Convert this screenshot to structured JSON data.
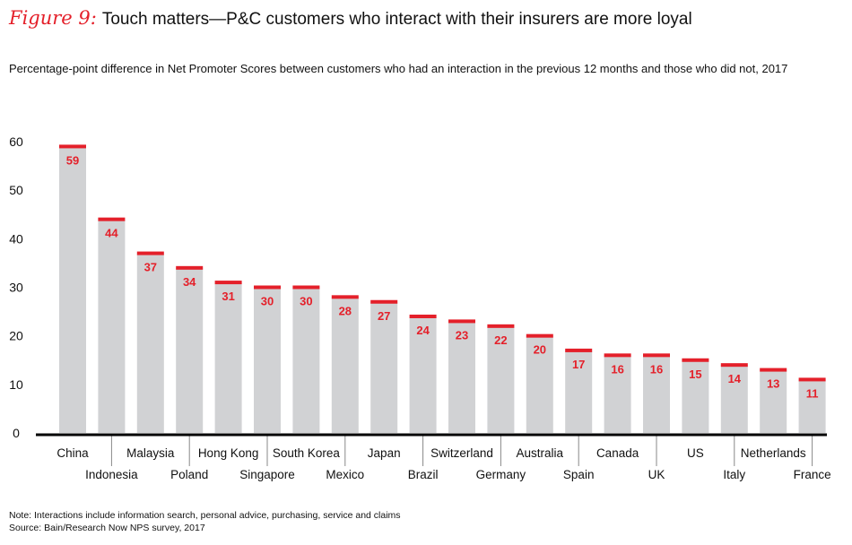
{
  "header": {
    "figure_label": "Figure 9:",
    "title": "Touch matters—P&C customers who interact with their insurers are more loyal",
    "subtitle": "Percentage-point difference in Net Promoter Scores between customers who had an interaction in the previous 12 months and those who did not, 2017"
  },
  "footer": {
    "note": "Note: Interactions include information search, personal advice, purchasing, service and claims",
    "source": "Source: Bain/Research Now NPS survey, 2017"
  },
  "colors": {
    "bar": "#d1d2d4",
    "accent": "#e4202a",
    "axis": "#000000"
  },
  "chart_data": {
    "type": "bar",
    "title": "",
    "xlabel": "",
    "ylabel": "",
    "ylim": [
      0,
      60
    ],
    "yticks": [
      0,
      10,
      20,
      30,
      40,
      50,
      60
    ],
    "grid": false,
    "data_labels": true,
    "categories": [
      "China",
      "Indonesia",
      "Malaysia",
      "Poland",
      "Hong Kong",
      "Singapore",
      "South Korea",
      "Mexico",
      "Japan",
      "Brazil",
      "Switzerland",
      "Germany",
      "Australia",
      "Spain",
      "Canada",
      "UK",
      "US",
      "Italy",
      "Netherlands",
      "France"
    ],
    "values": [
      59,
      44,
      37,
      34,
      31,
      30,
      30,
      28,
      27,
      24,
      23,
      22,
      20,
      17,
      16,
      16,
      15,
      14,
      13,
      11
    ]
  }
}
